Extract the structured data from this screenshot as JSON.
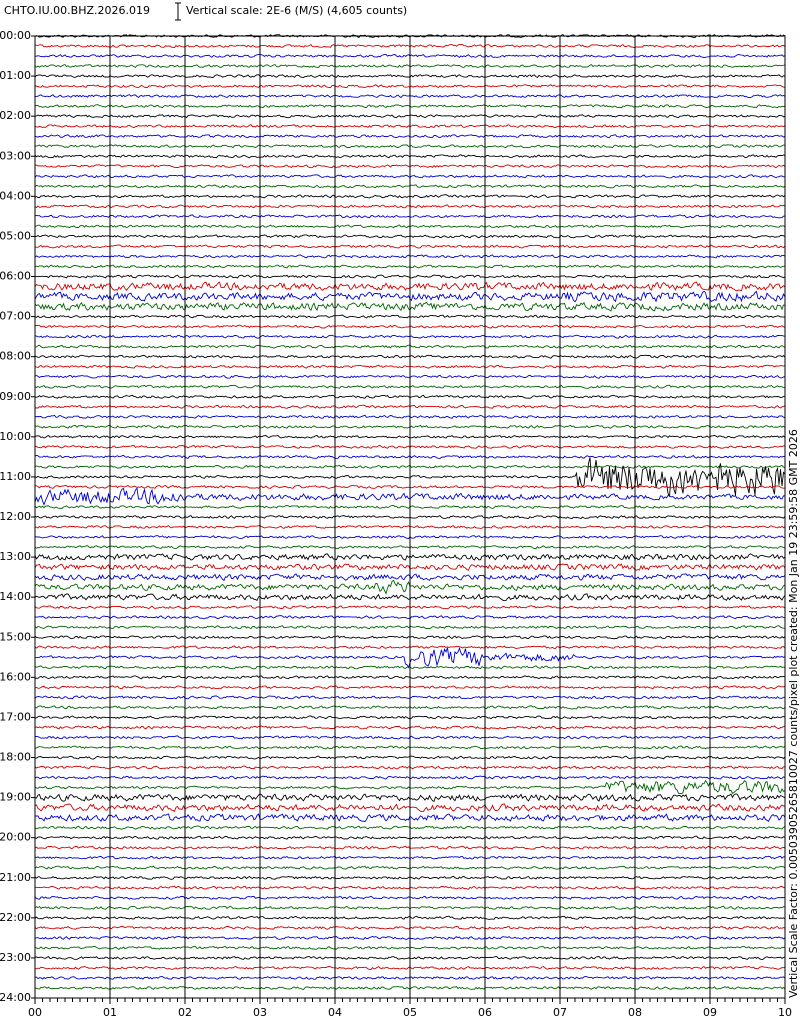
{
  "header": {
    "station": "CHTO.IU.00.BHZ.2026.019",
    "scale": "Vertical scale: 2E-6 (M/S) (4,605 counts)"
  },
  "hour_labels": [
    "00:00",
    "01:00",
    "02:00",
    "03:00",
    "04:00",
    "05:00",
    "06:00",
    "07:00",
    "08:00",
    "09:00",
    "10:00",
    "11:00",
    "12:00",
    "13:00",
    "14:00",
    "15:00",
    "16:00",
    "17:00",
    "18:00",
    "19:00",
    "20:00",
    "21:00",
    "22:00",
    "23:00",
    "24:00"
  ],
  "minute_labels": [
    "00",
    "01",
    "02",
    "03",
    "04",
    "05",
    "06",
    "07",
    "08",
    "09",
    "10"
  ],
  "footer": "Vertical Scale Factor: 0.00503905265810027 counts/pixel plot created: Mon Jan 19 23:59:58 GMT 2026"
}
